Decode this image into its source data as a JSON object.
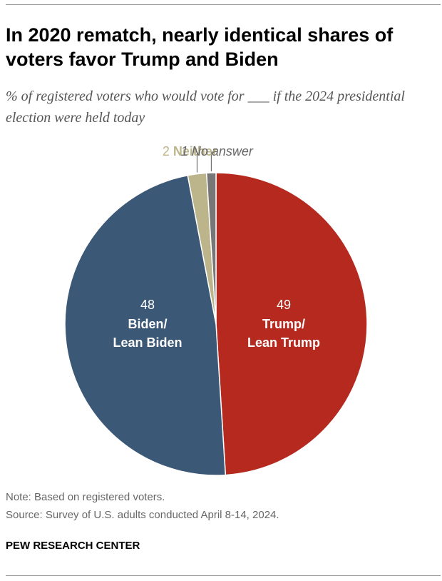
{
  "chart_data": {
    "type": "pie",
    "title": "In 2020 rematch, nearly identical shares of voters favor Trump and Biden",
    "subtitle": "% of registered voters who would vote for ___ if the 2024 presidential election were held today",
    "categories": [
      "Trump/\nLean Trump",
      "Biden/\nLean Biden",
      "Neither",
      "No answer"
    ],
    "values": [
      49,
      48,
      2,
      1
    ],
    "colors": [
      "#b5291f",
      "#3b5877",
      "#bcb48a",
      "#777777"
    ],
    "note": "Note: Based on registered voters.",
    "source": "Source: Survey of U.S. adults conducted April 8-14, 2024.",
    "credit": "PEW RESEARCH CENTER"
  }
}
